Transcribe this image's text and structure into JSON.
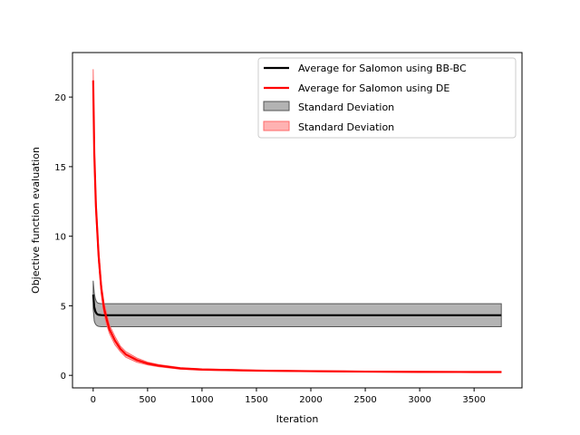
{
  "chart_data": {
    "type": "line",
    "title": "",
    "xlabel": "Iteration",
    "ylabel": "Objective function evaluation",
    "xlim": [
      -190,
      3940
    ],
    "ylim": [
      -0.9,
      23.2
    ],
    "xticks": [
      0,
      500,
      1000,
      1500,
      2000,
      2500,
      3000,
      3500
    ],
    "yticks": [
      0,
      5,
      10,
      15,
      20
    ],
    "grid": false,
    "legend_position": "top-right",
    "series": [
      {
        "name": "Average for Salomon using BB-BC",
        "color": "#000000",
        "x": [
          0,
          10,
          20,
          30,
          40,
          50,
          75,
          100,
          200,
          500,
          1000,
          1500,
          2000,
          2500,
          3000,
          3500,
          3750
        ],
        "y": [
          5.8,
          4.9,
          4.6,
          4.45,
          4.38,
          4.35,
          4.33,
          4.32,
          4.32,
          4.32,
          4.32,
          4.32,
          4.32,
          4.32,
          4.32,
          4.32,
          4.32
        ],
        "lower": [
          4.8,
          3.9,
          3.7,
          3.6,
          3.55,
          3.52,
          3.5,
          3.5,
          3.5,
          3.5,
          3.5,
          3.5,
          3.5,
          3.5,
          3.5,
          3.5,
          3.5
        ],
        "upper": [
          6.8,
          5.9,
          5.5,
          5.3,
          5.22,
          5.18,
          5.15,
          5.15,
          5.15,
          5.15,
          5.15,
          5.15,
          5.15,
          5.15,
          5.15,
          5.15,
          5.15
        ]
      },
      {
        "name": "Average for Salomon using DE",
        "color": "#ff0000",
        "x": [
          0,
          10,
          25,
          50,
          75,
          100,
          125,
          150,
          200,
          250,
          300,
          400,
          500,
          600,
          800,
          1000,
          1500,
          2000,
          2500,
          3000,
          3500,
          3750
        ],
        "y": [
          21.2,
          16.0,
          12.2,
          8.6,
          6.2,
          4.8,
          4.0,
          3.3,
          2.5,
          1.9,
          1.5,
          1.1,
          0.85,
          0.7,
          0.5,
          0.42,
          0.34,
          0.3,
          0.27,
          0.25,
          0.24,
          0.24
        ],
        "lower": [
          20.4,
          15.2,
          11.6,
          8.1,
          5.8,
          4.4,
          3.6,
          3.0,
          2.2,
          1.7,
          1.3,
          0.95,
          0.75,
          0.62,
          0.44,
          0.37,
          0.3,
          0.27,
          0.24,
          0.22,
          0.21,
          0.21
        ],
        "upper": [
          22.0,
          16.8,
          12.8,
          9.1,
          6.6,
          5.2,
          4.4,
          3.6,
          2.8,
          2.1,
          1.7,
          1.25,
          0.95,
          0.78,
          0.56,
          0.47,
          0.38,
          0.33,
          0.3,
          0.28,
          0.27,
          0.27
        ]
      }
    ],
    "bands": [
      {
        "name": "Standard Deviation",
        "series": 0,
        "fill": "#808080",
        "edge": "#555555"
      },
      {
        "name": "Standard Deviation",
        "series": 1,
        "fill": "#ff7f7f",
        "edge": "#ff6a6a"
      }
    ]
  }
}
